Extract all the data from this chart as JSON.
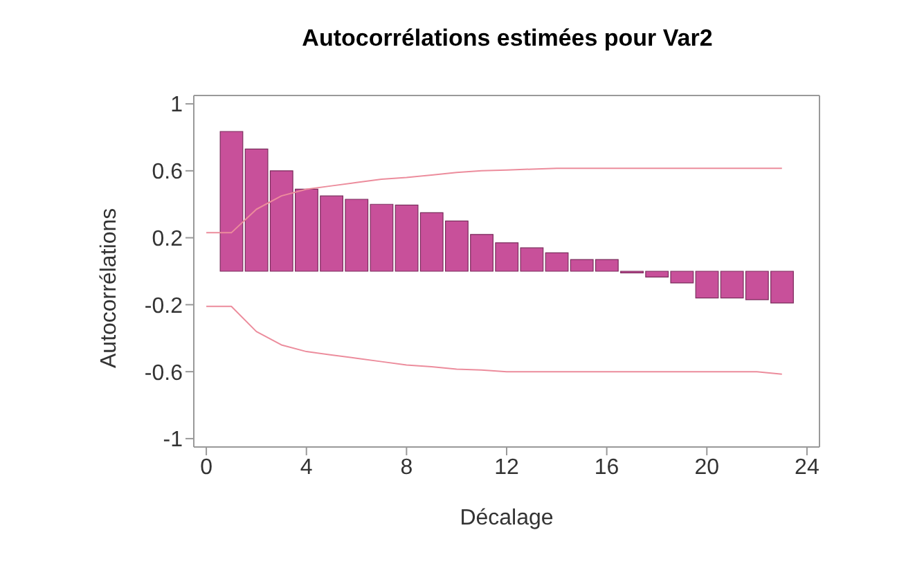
{
  "chart_data": {
    "type": "bar",
    "title": "Autocorrélations estimées pour Var2",
    "xlabel": "Décalage",
    "ylabel": "Autocorrélations",
    "xlim": [
      -0.5,
      24.5
    ],
    "xticks": [
      0,
      4,
      8,
      12,
      16,
      20,
      24
    ],
    "ylim": [
      -1.05,
      1.05
    ],
    "yticks": [
      -1,
      -0.6,
      -0.2,
      0.2,
      0.6,
      1
    ],
    "grid": false,
    "series": [
      {
        "color": "#c8509a",
        "x": [
          1,
          2,
          3,
          4,
          5,
          6,
          7,
          8,
          9,
          10,
          11,
          12,
          13,
          14,
          15,
          16,
          17,
          18,
          19,
          20,
          21,
          22,
          23
        ],
        "values": [
          0.835,
          0.73,
          0.6,
          0.49,
          0.45,
          0.43,
          0.4,
          0.395,
          0.35,
          0.3,
          0.22,
          0.17,
          0.14,
          0.11,
          0.07,
          0.07,
          -0.01,
          -0.035,
          -0.07,
          -0.16,
          -0.16,
          -0.17,
          -0.19
        ]
      },
      {
        "type": "line",
        "color": "#ec8c9c",
        "x": [
          0,
          1,
          2,
          3,
          4,
          5,
          6,
          7,
          8,
          9,
          10,
          11,
          12,
          13,
          14,
          15,
          16,
          17,
          18,
          19,
          20,
          21,
          22,
          23
        ],
        "values": [
          0.23,
          0.23,
          0.37,
          0.45,
          0.49,
          0.51,
          0.53,
          0.55,
          0.56,
          0.575,
          0.59,
          0.6,
          0.605,
          0.61,
          0.615,
          0.615,
          0.615,
          0.615,
          0.615,
          0.615,
          0.615,
          0.615,
          0.615,
          0.615
        ]
      },
      {
        "type": "line",
        "color": "#ec8c9c",
        "x": [
          0,
          1,
          2,
          3,
          4,
          5,
          6,
          7,
          8,
          9,
          10,
          11,
          12,
          13,
          14,
          15,
          16,
          17,
          18,
          19,
          20,
          21,
          22,
          23
        ],
        "values": [
          -0.21,
          -0.21,
          -0.36,
          -0.44,
          -0.48,
          -0.5,
          -0.52,
          -0.54,
          -0.56,
          -0.57,
          -0.585,
          -0.59,
          -0.6,
          -0.6,
          -0.6,
          -0.6,
          -0.6,
          -0.6,
          -0.6,
          -0.6,
          -0.6,
          -0.6,
          -0.6,
          -0.615
        ]
      }
    ]
  }
}
